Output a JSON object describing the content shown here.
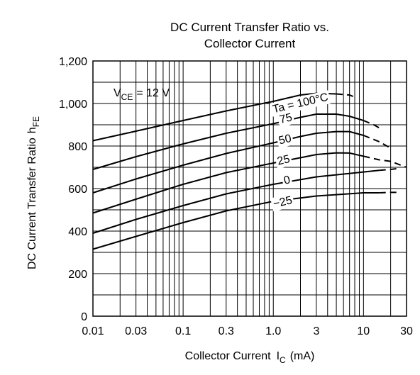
{
  "chart_data": {
    "type": "line",
    "title_line1": "DC Current Transfer Ratio vs.",
    "title_line2": "Collector Current",
    "xlabel": "Collector Current",
    "xlabel_symbol": "I",
    "xlabel_sub": "C",
    "xlabel_unit": "(mA)",
    "ylabel": "DC Current Transfer Ratio",
    "ylabel_symbol": "h",
    "ylabel_sub": "FE",
    "x_scale": "log",
    "xlim": [
      0.01,
      30
    ],
    "ylim": [
      0,
      1200
    ],
    "x_ticks": [
      {
        "value": 0.01,
        "label": "0.01"
      },
      {
        "value": 0.03,
        "label": "0.03"
      },
      {
        "value": 0.1,
        "label": "0.1"
      },
      {
        "value": 0.3,
        "label": "0.3"
      },
      {
        "value": 1,
        "label": "1.0"
      },
      {
        "value": 3,
        "label": "3"
      },
      {
        "value": 10,
        "label": "10"
      },
      {
        "value": 30,
        "label": "30"
      }
    ],
    "y_ticks": [
      {
        "value": 0,
        "label": "0"
      },
      {
        "value": 200,
        "label": "200"
      },
      {
        "value": 400,
        "label": "400"
      },
      {
        "value": 600,
        "label": "600"
      },
      {
        "value": 800,
        "label": "800"
      },
      {
        "value": 1000,
        "label": "1,000"
      },
      {
        "value": 1200,
        "label": "1,200"
      }
    ],
    "grid": true,
    "condition": {
      "symbol": "V",
      "sub": "CE",
      "text": "= 12 V"
    },
    "series": [
      {
        "name": "Ta = 100°C",
        "solid": [
          [
            0.01,
            825
          ],
          [
            0.03,
            870
          ],
          [
            0.1,
            920
          ],
          [
            0.3,
            965
          ],
          [
            1,
            1010
          ],
          [
            2,
            1040
          ],
          [
            3,
            1048
          ],
          [
            5,
            1045
          ]
        ],
        "dashed": [
          [
            5,
            1045
          ],
          [
            7,
            1040
          ],
          [
            8,
            1030
          ]
        ]
      },
      {
        "name": "75",
        "solid": [
          [
            0.01,
            690
          ],
          [
            0.03,
            750
          ],
          [
            0.1,
            810
          ],
          [
            0.3,
            860
          ],
          [
            1,
            905
          ],
          [
            2,
            935
          ],
          [
            3,
            950
          ],
          [
            5,
            950
          ],
          [
            7,
            940
          ],
          [
            10,
            920
          ]
        ],
        "dashed": [
          [
            10,
            920
          ],
          [
            13,
            900
          ],
          [
            15,
            885
          ]
        ]
      },
      {
        "name": "50",
        "solid": [
          [
            0.01,
            580
          ],
          [
            0.03,
            645
          ],
          [
            0.1,
            710
          ],
          [
            0.3,
            765
          ],
          [
            1,
            815
          ],
          [
            2,
            845
          ],
          [
            3,
            860
          ],
          [
            5,
            868
          ],
          [
            7,
            868
          ],
          [
            10,
            850
          ]
        ],
        "dashed": [
          [
            10,
            850
          ],
          [
            15,
            820
          ],
          [
            20,
            790
          ]
        ]
      },
      {
        "name": "25",
        "solid": [
          [
            0.01,
            485
          ],
          [
            0.03,
            550
          ],
          [
            0.1,
            620
          ],
          [
            0.3,
            675
          ],
          [
            1,
            720
          ],
          [
            2,
            745
          ],
          [
            3,
            760
          ],
          [
            5,
            768
          ],
          [
            7,
            767
          ],
          [
            10,
            752
          ]
        ],
        "dashed": [
          [
            10,
            752
          ],
          [
            15,
            735
          ],
          [
            20,
            728
          ],
          [
            30,
            700
          ]
        ]
      },
      {
        "name": "0",
        "solid": [
          [
            0.01,
            390
          ],
          [
            0.03,
            455
          ],
          [
            0.1,
            520
          ],
          [
            0.3,
            575
          ],
          [
            1,
            620
          ],
          [
            3,
            655
          ],
          [
            10,
            678
          ],
          [
            15,
            686
          ]
        ],
        "dashed": [
          [
            15,
            686
          ],
          [
            20,
            690
          ],
          [
            25,
            695
          ]
        ]
      },
      {
        "name": "−25",
        "solid": [
          [
            0.01,
            315
          ],
          [
            0.03,
            375
          ],
          [
            0.1,
            440
          ],
          [
            0.3,
            495
          ],
          [
            1,
            540
          ],
          [
            3,
            565
          ],
          [
            10,
            580
          ],
          [
            15,
            580
          ]
        ],
        "dashed": [
          [
            15,
            580
          ],
          [
            20,
            582
          ],
          [
            25,
            582
          ]
        ]
      }
    ],
    "label_anchors": [
      {
        "series": 0,
        "x": 2.0,
        "y": 1000
      },
      {
        "series": 1,
        "x": 1.38,
        "y": 928
      },
      {
        "series": 2,
        "x": 1.35,
        "y": 829
      },
      {
        "series": 3,
        "x": 1.3,
        "y": 732
      },
      {
        "series": 4,
        "x": 1.42,
        "y": 638
      },
      {
        "series": 5,
        "x": 1.27,
        "y": 535
      }
    ]
  }
}
